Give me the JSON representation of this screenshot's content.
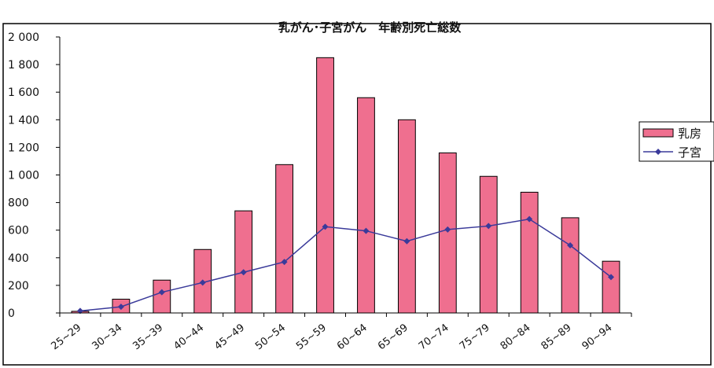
{
  "chart_data": {
    "type": "bar",
    "title": "乳がん･子宮がん　年齢別死亡総数",
    "categories": [
      "25~29",
      "30~34",
      "35~39",
      "40~44",
      "45~49",
      "50~54",
      "55~59",
      "60~64",
      "65~69",
      "70~74",
      "75~79",
      "80~84",
      "85~89",
      "90~94"
    ],
    "series": [
      {
        "name": "乳房",
        "type": "bar",
        "color": "#ef6f8f",
        "values": [
          12,
          100,
          238,
          460,
          740,
          1075,
          1850,
          1560,
          1400,
          1160,
          990,
          875,
          690,
          375
        ]
      },
      {
        "name": "子宮",
        "type": "line",
        "color": "#3a3a9a",
        "values": [
          15,
          45,
          150,
          220,
          295,
          370,
          625,
          595,
          520,
          605,
          630,
          680,
          490,
          260
        ]
      }
    ],
    "yticks": [
      "2 000",
      "1 800",
      "1 600",
      "1 400",
      "1 200",
      "1 000",
      "800",
      "600",
      "400",
      "200",
      "0"
    ],
    "ylim": [
      0,
      2000
    ],
    "xlabel": "",
    "ylabel": "",
    "legend_position": "right",
    "grid": false
  }
}
